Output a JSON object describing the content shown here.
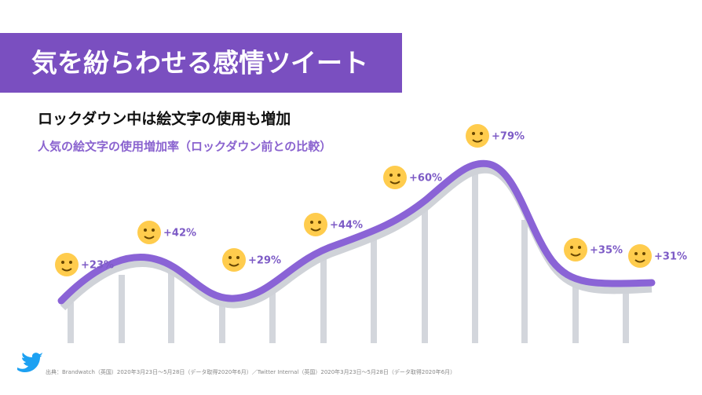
{
  "header": {
    "title": "気を紛らわせる感情ツイート"
  },
  "heading": "ロックダウン中は絵文字の使用も増加",
  "subheading": "人気の絵文字の使用増加率（ロックダウン前との比較）",
  "items": [
    {
      "label": "+23%"
    },
    {
      "label": "+42%"
    },
    {
      "label": "+29%"
    },
    {
      "label": "+44%"
    },
    {
      "label": "+60%"
    },
    {
      "label": "+79%"
    },
    {
      "label": "+35%"
    },
    {
      "label": "+31%"
    }
  ],
  "source": "出典：Brandwatch（英国）2020年3月23日〜5月28日（データ取得2020年6月）／Twitter Internal（英国）2020年3月23日〜5月28日（データ取得2020年6月）"
}
